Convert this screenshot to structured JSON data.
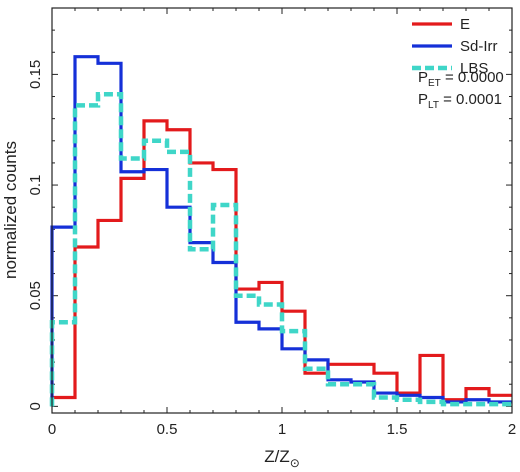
{
  "chart_data": {
    "type": "histogram-step",
    "xlabel": "Z/Z",
    "xlabel_symbol": "⊙",
    "ylabel": "normalized counts",
    "xlim": [
      0,
      2
    ],
    "ylim": [
      -0.003,
      0.18
    ],
    "xticks": [
      0,
      0.5,
      1,
      1.5,
      2
    ],
    "xtick_labels": [
      "0",
      "0.5",
      "1",
      "1.5",
      "2"
    ],
    "yticks": [
      0,
      0.05,
      0.1,
      0.15
    ],
    "ytick_labels": [
      "0",
      "0.05",
      "0.1",
      "0.15"
    ],
    "bin_edges": [
      0,
      0.1,
      0.2,
      0.3,
      0.4,
      0.5,
      0.6,
      0.7,
      0.8,
      0.9,
      1.0,
      1.1,
      1.2,
      1.3,
      1.4,
      1.5,
      1.6,
      1.7,
      1.8,
      1.9,
      2.0
    ],
    "legend_position": "top-right",
    "series": [
      {
        "name": "E",
        "color": "#e31a1c",
        "style": "solid",
        "values": [
          0.004,
          0.072,
          0.084,
          0.103,
          0.129,
          0.125,
          0.11,
          0.107,
          0.053,
          0.056,
          0.043,
          0.015,
          0.019,
          0.019,
          0.015,
          0.006,
          0.023,
          0.003,
          0.008,
          0.005
        ]
      },
      {
        "name": "Sd-Irr",
        "color": "#1530d8",
        "style": "solid",
        "values": [
          0.081,
          0.158,
          0.155,
          0.106,
          0.107,
          0.09,
          0.074,
          0.065,
          0.038,
          0.035,
          0.026,
          0.021,
          0.012,
          0.011,
          0.006,
          0.005,
          0.004,
          0.002,
          0.003,
          0.002
        ]
      },
      {
        "name": "LBS",
        "color": "#3fd6c8",
        "style": "dashed",
        "values": [
          0.038,
          0.136,
          0.141,
          0.112,
          0.12,
          0.115,
          0.071,
          0.091,
          0.05,
          0.046,
          0.034,
          0.017,
          0.01,
          0.01,
          0.004,
          0.003,
          0.002,
          0.001,
          0.001,
          0.001
        ]
      }
    ],
    "annotations": [
      {
        "prefix": "P",
        "subscript": "ET",
        "text": " = 0.0000"
      },
      {
        "prefix": "P",
        "subscript": "LT",
        "text": " = 0.0001"
      }
    ]
  }
}
